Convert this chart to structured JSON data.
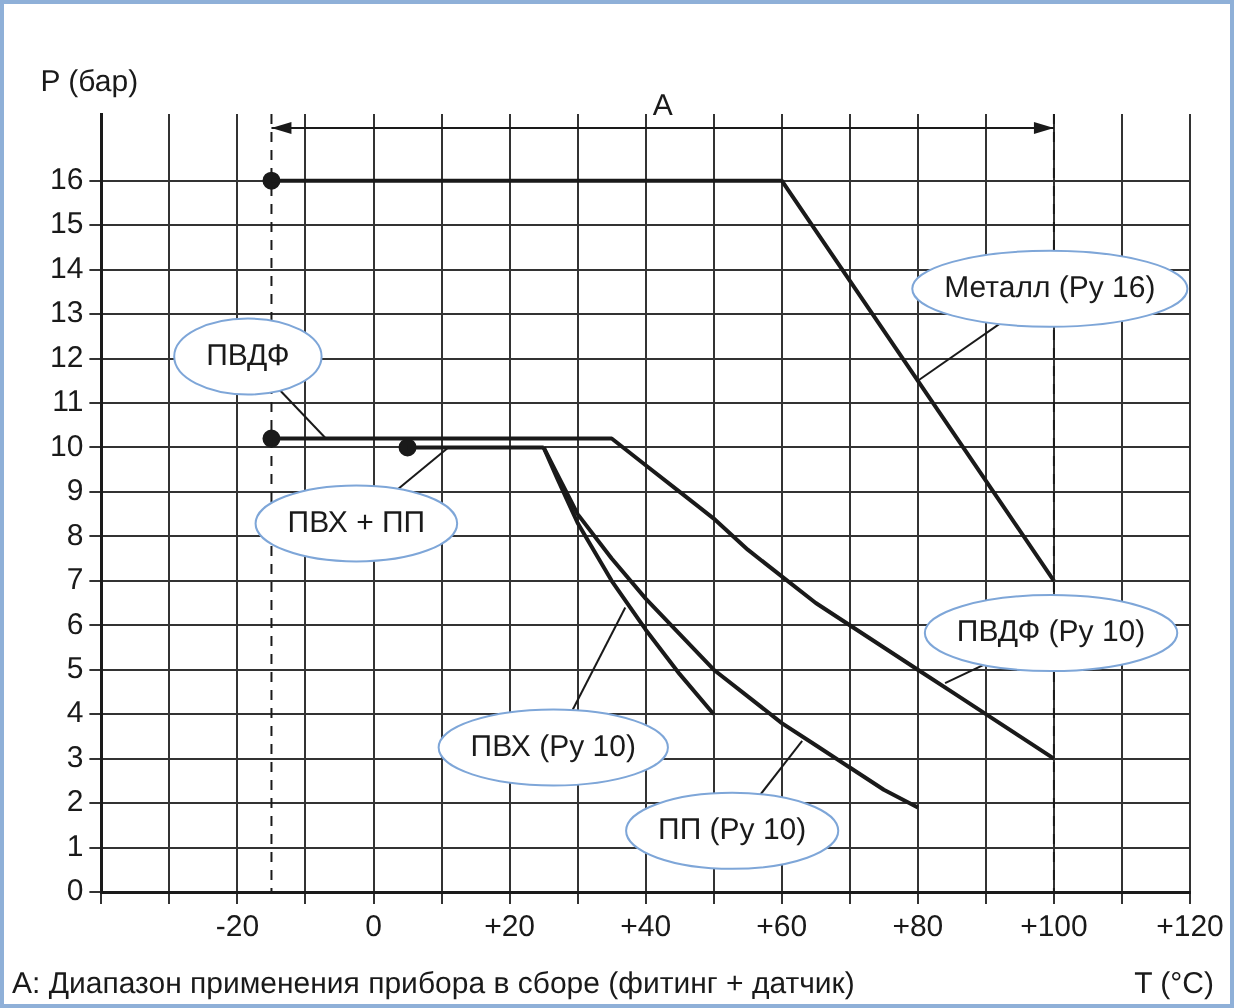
{
  "chart_data": {
    "type": "line",
    "xlabel": "T (°C)",
    "ylabel": "P (бар)",
    "xlim": [
      -40,
      120
    ],
    "xticks": [
      {
        "value": -40,
        "label": null
      },
      {
        "value": -30,
        "label": null
      },
      {
        "value": -20,
        "label": "-20"
      },
      {
        "value": -10,
        "label": null
      },
      0,
      {
        "value": 10,
        "label": null
      },
      {
        "value": 20,
        "label": "+20"
      },
      {
        "value": 30,
        "label": null
      },
      {
        "value": 40,
        "label": "+40"
      },
      {
        "value": 50,
        "label": null
      },
      {
        "value": 60,
        "label": "+60"
      },
      {
        "value": 70,
        "label": null
      },
      {
        "value": 80,
        "label": "+80"
      },
      {
        "value": 90,
        "label": null
      },
      {
        "value": 100,
        "label": "+100"
      },
      {
        "value": 110,
        "label": null
      },
      {
        "value": 120,
        "label": "+120"
      }
    ],
    "ylim": [
      0,
      17.5
    ],
    "yticks": [
      0,
      1,
      2,
      3,
      4,
      5,
      6,
      7,
      8,
      9,
      10,
      11,
      12,
      13,
      14,
      15,
      16
    ],
    "grid": true,
    "legend": false,
    "marker": "none",
    "line_style": "solid",
    "series": [
      {
        "color": "#1a1a1a",
        "x": [
          -15,
          60,
          100
        ],
        "values": [
          16,
          16,
          7
        ]
      },
      {
        "color": "#1a1a1a",
        "x": [
          -15,
          35,
          40,
          45,
          50,
          55,
          60,
          65,
          70,
          75,
          80,
          85,
          90,
          95,
          100
        ],
        "values": [
          10.2,
          10.2,
          9.6,
          9,
          8.4,
          7.7,
          7.1,
          6.5,
          6,
          5.5,
          5,
          4.5,
          4,
          3.5,
          3
        ]
      },
      {
        "color": "#1a1a1a",
        "x": [
          5,
          25
        ],
        "values": [
          10,
          10
        ]
      },
      {
        "color": "#1a1a1a",
        "x": [
          25,
          27,
          30,
          35,
          40,
          45,
          50
        ],
        "values": [
          10,
          9.3,
          8.3,
          7,
          5.9,
          4.9,
          4
        ]
      },
      {
        "color": "#1a1a1a",
        "x": [
          25,
          27,
          30,
          35,
          40,
          45,
          50,
          55,
          60,
          65,
          70,
          75,
          80
        ],
        "values": [
          10,
          9.4,
          8.5,
          7.5,
          6.6,
          5.8,
          5,
          4.4,
          3.8,
          3.3,
          2.8,
          2.3,
          1.9
        ]
      },
      {
        "type": "scatter",
        "marker": "circle",
        "color": "#1a1a1a",
        "x": [
          -15,
          -15,
          5
        ],
        "values": [
          16,
          10.2,
          10
        ]
      }
    ],
    "ref_lines": [
      {
        "axis": "x",
        "value": -15,
        "line_style": "dashed"
      },
      {
        "axis": "x",
        "value": 100,
        "line_style": "dashed"
      }
    ],
    "annotations": [
      "A",
      {
        "text": "Металл (Ру 16)",
        "x": 80,
        "y": 11.5
      },
      {
        "text": "ПВДФ",
        "x": -7,
        "y": 10.2
      },
      {
        "text": "ПВХ + ПП",
        "x": 11,
        "y": 10
      },
      {
        "text": "ПВДФ (Ру 10)",
        "x": 84,
        "y": 4.7
      },
      {
        "text": "ПВХ (Ру 10)",
        "x": 37,
        "y": 6.4
      },
      {
        "text": "ПП (Ру 10)",
        "x": 63,
        "y": 3.4
      },
      "A: Диапазон применения прибора в сборе (фитинг + датчик)"
    ]
  }
}
